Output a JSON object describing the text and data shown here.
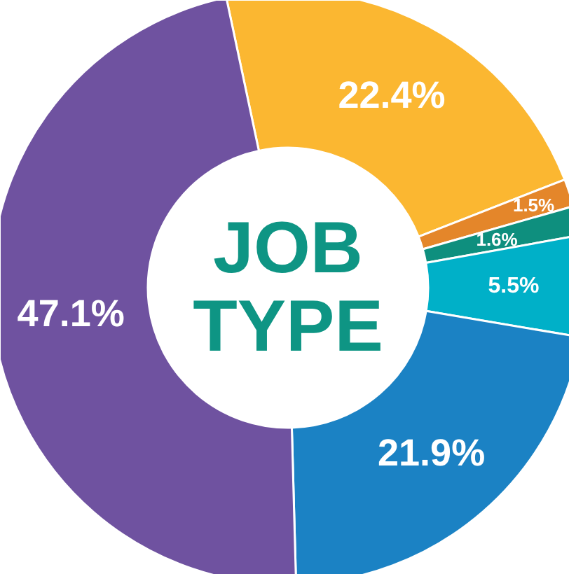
{
  "chart_data": {
    "type": "donut",
    "title": "JOB TYPE",
    "categories": [
      null,
      null,
      null,
      null,
      null,
      null
    ],
    "values": [
      22.4,
      1.5,
      1.6,
      5.5,
      21.9,
      47.1
    ],
    "value_labels": [
      "22.4%",
      "1.5%",
      "1.6%",
      "5.5%",
      "21.9%",
      "47.1%"
    ],
    "colors": [
      "#fbb731",
      "#e4862a",
      "#0e8f7e",
      "#00b0c8",
      "#1b82c4",
      "#6f52a0"
    ]
  }
}
